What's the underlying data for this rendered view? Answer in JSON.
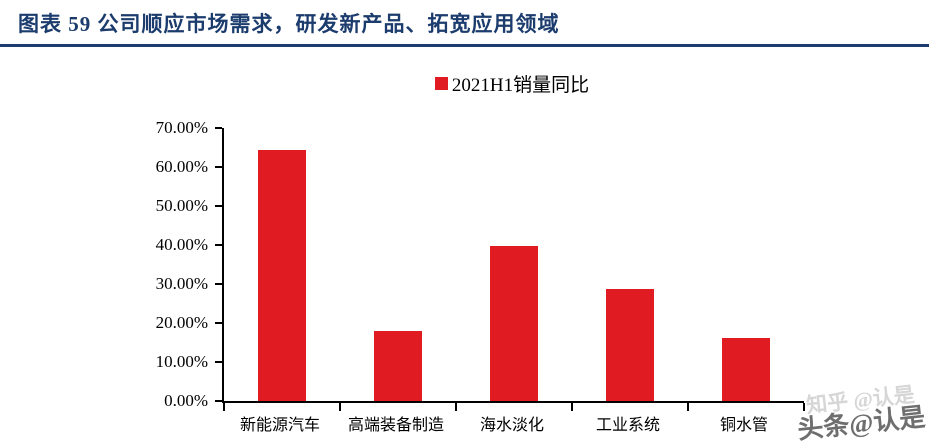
{
  "header": {
    "title": "图表 59  公司顺应市场需求，研发新产品、拓宽应用领域"
  },
  "watermarks": {
    "zhihu": "知乎 @认是",
    "toutiao": "头条@认是"
  },
  "colors": {
    "bar": "#e11b22",
    "accent": "#1b3c6d",
    "axis": "#000000",
    "watermark_light": "#cfcfcf",
    "watermark_dark": "#5f5f5f"
  },
  "chart_data": {
    "type": "bar",
    "title": "",
    "legend_label": "2021H1销量同比",
    "legend_position": "top-center",
    "categories": [
      "新能源汽车",
      "高端装备制造",
      "海水淡化",
      "工业系统",
      "铜水管"
    ],
    "values": [
      64.3,
      17.9,
      39.8,
      28.7,
      16.2
    ],
    "value_unit": "percent",
    "ylim": [
      0,
      70
    ],
    "ytick_step": 10,
    "yticks": [
      "0.00%",
      "10.00%",
      "20.00%",
      "30.00%",
      "40.00%",
      "50.00%",
      "60.00%",
      "70.00%"
    ],
    "xlabel": "",
    "ylabel": "",
    "grid": false
  }
}
